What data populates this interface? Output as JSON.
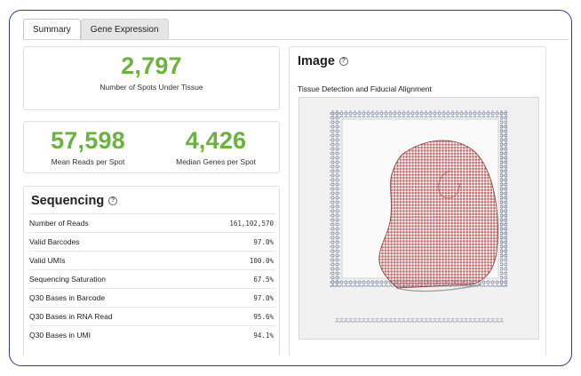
{
  "tabs": [
    {
      "label": "Summary",
      "active": true
    },
    {
      "label": "Gene Expression",
      "active": false
    }
  ],
  "metrics": {
    "spots_value": "2,797",
    "spots_label": "Number of Spots Under Tissue",
    "reads_value": "57,598",
    "reads_label": "Mean Reads per Spot",
    "genes_value": "4,426",
    "genes_label": "Median Genes per Spot"
  },
  "sequencing": {
    "title": "Sequencing",
    "rows": [
      {
        "label": "Number of Reads",
        "value": "161,102,570"
      },
      {
        "label": "Valid Barcodes",
        "value": "97.0%"
      },
      {
        "label": "Valid UMIs",
        "value": "100.0%"
      },
      {
        "label": "Sequencing Saturation",
        "value": "67.5%"
      },
      {
        "label": "Q30 Bases in Barcode",
        "value": "97.0%"
      },
      {
        "label": "Q30 Bases in RNA Read",
        "value": "95.6%"
      },
      {
        "label": "Q30 Bases in UMI",
        "value": "94.1%"
      }
    ]
  },
  "image": {
    "title": "Image",
    "subtitle": "Tissue Detection and Fiducial Alignment"
  },
  "colors": {
    "metric_green": "#6cb33e",
    "frame_border": "#2f3f86",
    "tissue_fill": "#c76a6a"
  }
}
